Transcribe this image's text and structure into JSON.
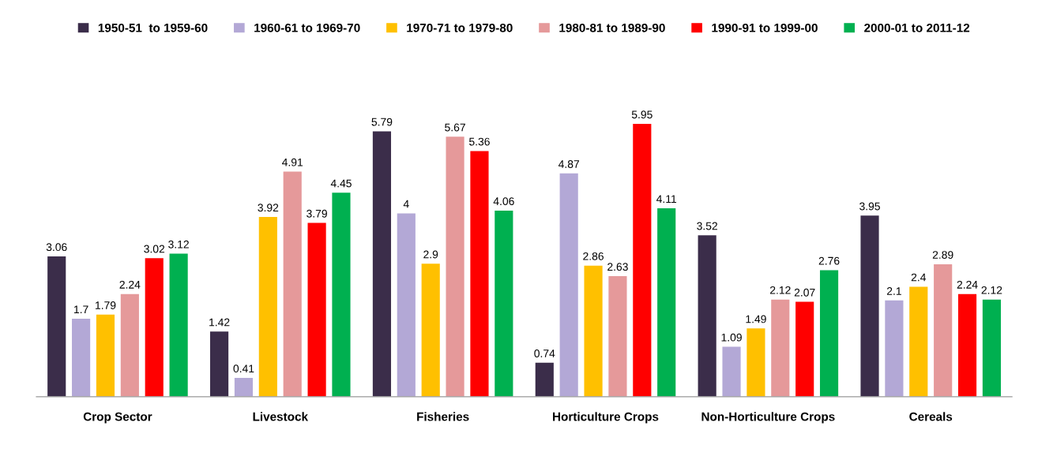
{
  "chart_data": {
    "type": "bar",
    "categories": [
      "Crop Sector",
      "Livestock",
      "Fisheries",
      "Horticulture Crops",
      "Non-Horticulture Crops",
      "Cereals"
    ],
    "series": [
      {
        "name": "1950-51  to 1959-60",
        "color": "#3b2d4a",
        "values": [
          3.06,
          1.42,
          5.79,
          0.74,
          3.52,
          3.95
        ]
      },
      {
        "name": "1960-61 to 1969-70",
        "color": "#b3a8d6",
        "values": [
          1.7,
          0.41,
          4,
          4.87,
          1.09,
          2.1
        ]
      },
      {
        "name": "1970-71 to 1979-80",
        "color": "#ffc000",
        "values": [
          1.79,
          3.92,
          2.9,
          2.86,
          1.49,
          2.4
        ]
      },
      {
        "name": "1980-81 to 1989-90",
        "color": "#e5999a",
        "values": [
          2.24,
          4.91,
          5.67,
          2.63,
          2.12,
          2.89
        ]
      },
      {
        "name": "1990-91 to 1999-00",
        "color": "#ff0000",
        "values": [
          3.02,
          3.79,
          5.36,
          5.95,
          2.07,
          2.24
        ]
      },
      {
        "name": "2000-01 to 2011-12",
        "color": "#00b050",
        "values": [
          3.12,
          4.45,
          4.06,
          4.11,
          2.76,
          2.12
        ]
      }
    ],
    "data_labels": true,
    "legend": "top",
    "grid": false
  }
}
